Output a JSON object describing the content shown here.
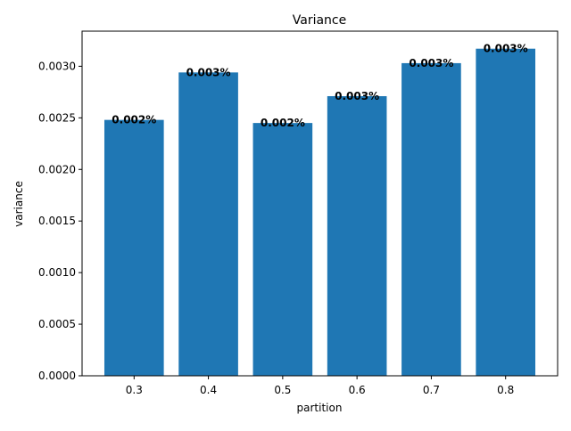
{
  "chart_data": {
    "type": "bar",
    "title": "Variance",
    "xlabel": "partition",
    "ylabel": "variance",
    "categories": [
      "0.3",
      "0.4",
      "0.5",
      "0.6",
      "0.7",
      "0.8"
    ],
    "values": [
      0.00248,
      0.00294,
      0.00245,
      0.00271,
      0.00303,
      0.00317
    ],
    "data_labels": [
      "0.002%",
      "0.003%",
      "0.002%",
      "0.003%",
      "0.003%",
      "0.003%"
    ],
    "ylim": [
      0,
      0.00334
    ],
    "yticks": [
      0.0,
      0.0005,
      0.001,
      0.0015,
      0.002,
      0.0025,
      0.003
    ],
    "ytick_labels": [
      "0.0000",
      "0.0005",
      "0.0010",
      "0.0015",
      "0.0020",
      "0.0025",
      "0.0030"
    ],
    "grid": false,
    "legend": "none",
    "bar_color": "#1f77b4"
  }
}
